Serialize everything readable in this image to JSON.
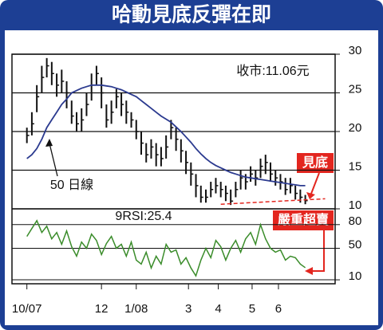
{
  "chart_data": {
    "type": "stock",
    "title": "哈動見底反彈在即",
    "x": [
      0,
      1,
      2,
      3,
      4,
      5,
      6,
      7,
      8,
      9,
      10,
      11,
      12,
      13,
      14,
      15,
      16,
      17,
      18,
      19,
      20,
      21,
      22,
      23,
      24,
      25,
      26,
      27,
      28,
      29,
      30,
      31,
      32,
      33,
      34,
      35,
      36,
      37,
      38,
      39,
      40,
      41,
      42,
      43,
      44,
      45,
      46,
      47,
      48,
      49,
      50,
      51,
      52,
      53,
      54,
      55,
      56
    ],
    "xlim": [
      -3,
      62
    ],
    "xticks": [
      {
        "value": 0,
        "label": "10/07"
      },
      {
        "value": 15,
        "label": "12"
      },
      {
        "value": 22,
        "label": "1/08"
      },
      {
        "value": 32.5,
        "label": "3"
      },
      {
        "value": 38.5,
        "label": "4"
      },
      {
        "value": 45.3,
        "label": "5"
      },
      {
        "value": 50.6,
        "label": "6"
      }
    ],
    "ylim": [
      10,
      30
    ],
    "yticks": [
      10,
      15,
      20,
      25,
      30
    ],
    "grid": true,
    "bar_color": "#111111",
    "high": [
      20.5,
      22.5,
      26,
      28.5,
      29.5,
      29,
      27.5,
      28,
      26.5,
      24,
      22.5,
      23,
      25,
      27.5,
      28.5,
      27,
      23.5,
      24,
      25.5,
      25,
      24,
      22.5,
      21.5,
      20,
      18.5,
      19,
      18.5,
      18,
      19.5,
      21.5,
      20.5,
      19,
      17.5,
      16,
      14.5,
      13,
      12.5,
      13.5,
      14,
      13.5,
      13,
      12.5,
      13.5,
      15,
      14.5,
      15.5,
      15,
      16.5,
      17,
      16,
      15,
      14.5,
      14,
      14,
      13,
      12.5,
      11.8
    ],
    "low": [
      18.5,
      19.5,
      22.5,
      25,
      27,
      26,
      24.5,
      25,
      23,
      21,
      20,
      20,
      22,
      24,
      26,
      23,
      20.5,
      21,
      23,
      22,
      21,
      20.5,
      19,
      17,
      16,
      16.5,
      15.5,
      15.5,
      16.5,
      19,
      17.5,
      16,
      14.5,
      13,
      11.5,
      10.8,
      10.8,
      11.5,
      12,
      11.5,
      11,
      10.5,
      11.5,
      12.5,
      12.5,
      13.5,
      13,
      14,
      14.5,
      13.5,
      13,
      12.5,
      11.8,
      12,
      11.2,
      10.8,
      10.6
    ],
    "close": [
      19.5,
      21,
      24.5,
      27,
      28.5,
      27.5,
      26,
      26.5,
      25,
      22,
      21,
      21.5,
      23.5,
      26,
      27.5,
      25,
      21.5,
      22.5,
      24.5,
      23.5,
      22.5,
      21.5,
      20,
      18.5,
      17,
      18,
      17,
      16.5,
      18,
      20.5,
      19,
      17.5,
      16,
      14.5,
      13,
      11.5,
      11.5,
      12.5,
      13,
      12.5,
      12,
      11,
      12.5,
      14,
      13.5,
      14.5,
      14,
      15.5,
      16,
      14.5,
      14,
      13.5,
      12.5,
      13,
      12,
      11.5,
      11.06
    ],
    "series": [
      {
        "name": "50 日線",
        "color": "#2b3a8f",
        "values": [
          16.5,
          17,
          17.8,
          19,
          20.5,
          21.5,
          22.5,
          23.5,
          24.2,
          25,
          25.3,
          25.6,
          25.8,
          26,
          26,
          26,
          25.9,
          25.8,
          25.6,
          25.4,
          25.1,
          24.8,
          24.5,
          24,
          23.5,
          23,
          22.5,
          22,
          21.6,
          21.2,
          20.6,
          20,
          19.3,
          18.6,
          17.8,
          17.1,
          16.5,
          16,
          15.6,
          15.3,
          15,
          14.7,
          14.5,
          14.3,
          14.1,
          14,
          13.9,
          13.8,
          13.7,
          13.6,
          13.5,
          13.4,
          13.3,
          13.2,
          13.1,
          13,
          13
        ]
      }
    ],
    "annotation": "收市:11.06元",
    "callout": "見底",
    "callout_color": "#e3261f",
    "support_line": {
      "color": "#e3261f",
      "x": [
        39,
        60
      ],
      "values": [
        10.6,
        11.3
      ]
    },
    "rsi": {
      "label": "9RSI:25.4",
      "color": "#3a8c2a",
      "ylim": [
        5,
        100
      ],
      "yticks": [
        10,
        50,
        80
      ],
      "callout": "嚴重超賣",
      "values": [
        65,
        75,
        85,
        70,
        78,
        62,
        70,
        55,
        72,
        52,
        40,
        58,
        50,
        68,
        60,
        42,
        56,
        65,
        50,
        55,
        40,
        58,
        35,
        30,
        45,
        25,
        40,
        30,
        55,
        45,
        48,
        30,
        38,
        25,
        15,
        35,
        50,
        38,
        60,
        52,
        35,
        50,
        60,
        45,
        62,
        70,
        55,
        80,
        62,
        50,
        45,
        48,
        35,
        40,
        38,
        30,
        25.4
      ]
    }
  }
}
